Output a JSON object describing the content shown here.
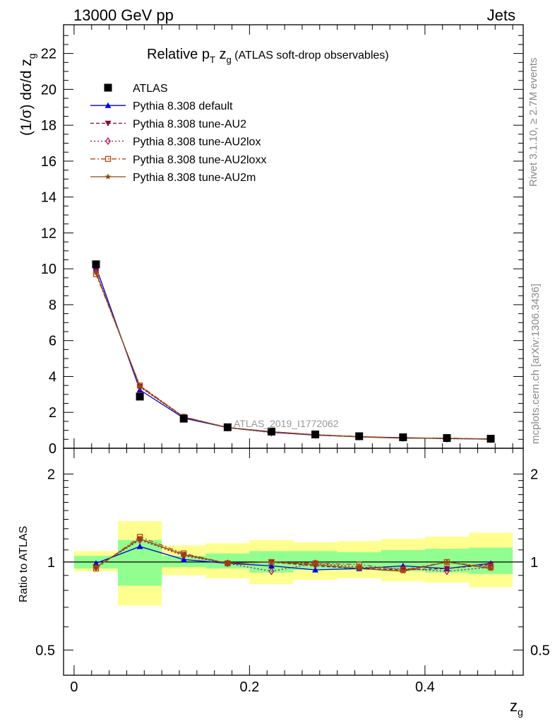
{
  "header": {
    "left": "13000 GeV pp",
    "right": "Jets"
  },
  "title": {
    "main": "Relative p",
    "sub_T": "T",
    "mid": " z",
    "sub_g": "g",
    "tail": " (ATLAS soft-drop observables)"
  },
  "side_texts": {
    "rivet": "Rivet 3.1.10, ≥ 2.7M events",
    "mcplots": "mcplots.cern.ch [arXiv:1306.3436]"
  },
  "watermark": "ATLAS_2019_I1772062",
  "axes": {
    "top_ylabel_main": "(1/σ) dσ/d z",
    "top_ylabel_sub": "g",
    "bottom_ylabel": "Ratio to ATLAS",
    "xlabel_main": "z",
    "xlabel_sub": "g"
  },
  "colors": {
    "atlas": "#000000",
    "default": "#0000dd",
    "au2": "#8b0a3a",
    "au2lox": "#a00a50",
    "au2loxx": "#c0440a",
    "au2m": "#8b4a12",
    "band_green": "#90ff90",
    "band_yellow": "#ffff90"
  },
  "legend": [
    {
      "key": "atlas",
      "label": "ATLAS",
      "marker": "square-filled",
      "line": "none"
    },
    {
      "key": "default",
      "label": "Pythia 8.308 default",
      "marker": "triangle-up",
      "line": "solid"
    },
    {
      "key": "au2",
      "label": "Pythia 8.308 tune-AU2",
      "marker": "triangle-down",
      "line": "dashed"
    },
    {
      "key": "au2lox",
      "label": "Pythia 8.308 tune-AU2lox",
      "marker": "diamond-open",
      "line": "dotted"
    },
    {
      "key": "au2loxx",
      "label": "Pythia 8.308 tune-AU2loxx",
      "marker": "square-open",
      "line": "dashdot"
    },
    {
      "key": "au2m",
      "label": "Pythia 8.308 tune-AU2m",
      "marker": "star",
      "line": "solid"
    }
  ],
  "chart_data": {
    "type": "line",
    "x": [
      0.025,
      0.075,
      0.125,
      0.175,
      0.225,
      0.275,
      0.325,
      0.375,
      0.425,
      0.475
    ],
    "x_edges": [
      0,
      0.05,
      0.1,
      0.15,
      0.2,
      0.25,
      0.3,
      0.35,
      0.4,
      0.45,
      0.5
    ],
    "xlim": [
      -0.012,
      0.512
    ],
    "top": {
      "ylim": [
        0,
        23.6
      ],
      "yticks": [
        0,
        2,
        4,
        6,
        8,
        10,
        12,
        14,
        16,
        18,
        20,
        22
      ],
      "series": [
        {
          "key": "atlas",
          "name": "ATLAS",
          "values": [
            10.25,
            2.88,
            1.65,
            1.17,
            0.93,
            0.77,
            0.67,
            0.61,
            0.57,
            0.53
          ]
        },
        {
          "key": "default",
          "name": "Pythia 8.308 default",
          "values": [
            10.1,
            3.25,
            1.68,
            1.15,
            0.89,
            0.73,
            0.64,
            0.59,
            0.54,
            0.52
          ]
        },
        {
          "key": "au2",
          "name": "Pythia 8.308 tune-AU2",
          "values": [
            9.8,
            3.45,
            1.74,
            1.16,
            0.92,
            0.75,
            0.64,
            0.57,
            0.55,
            0.52
          ]
        },
        {
          "key": "au2lox",
          "name": "Pythia 8.308 tune-AU2lox",
          "values": [
            9.85,
            3.4,
            1.72,
            1.15,
            0.87,
            0.76,
            0.64,
            0.58,
            0.53,
            0.51
          ]
        },
        {
          "key": "au2loxx",
          "name": "Pythia 8.308 tune-AU2loxx",
          "values": [
            9.7,
            3.5,
            1.75,
            1.16,
            0.92,
            0.76,
            0.66,
            0.57,
            0.57,
            0.51
          ]
        },
        {
          "key": "au2m",
          "name": "Pythia 8.308 tune-AU2m",
          "values": [
            9.8,
            3.45,
            1.74,
            1.15,
            0.92,
            0.75,
            0.63,
            0.56,
            0.56,
            0.5
          ]
        }
      ]
    },
    "ratio": {
      "ylim": [
        0.41,
        2.45
      ],
      "yscale": "log",
      "yticks": [
        0.5,
        1,
        2
      ],
      "band_green": [
        [
          0.95,
          1.05
        ],
        [
          0.83,
          1.19
        ],
        [
          0.96,
          1.05
        ],
        [
          0.95,
          1.07
        ],
        [
          0.92,
          1.09
        ],
        [
          0.94,
          1.09
        ],
        [
          0.94,
          1.08
        ],
        [
          0.93,
          1.1
        ],
        [
          0.92,
          1.11
        ],
        [
          0.91,
          1.12
        ]
      ],
      "band_yellow": [
        [
          0.93,
          1.09
        ],
        [
          0.71,
          1.38
        ],
        [
          0.9,
          1.14
        ],
        [
          0.88,
          1.16
        ],
        [
          0.84,
          1.19
        ],
        [
          0.87,
          1.17
        ],
        [
          0.88,
          1.18
        ],
        [
          0.86,
          1.2
        ],
        [
          0.85,
          1.22
        ],
        [
          0.82,
          1.26
        ]
      ],
      "series": [
        {
          "key": "default",
          "name": "Pythia 8.308 default",
          "values": [
            0.99,
            1.13,
            1.02,
            0.99,
            0.97,
            0.94,
            0.95,
            0.97,
            0.95,
            0.99
          ]
        },
        {
          "key": "au2",
          "name": "Pythia 8.308 tune-AU2",
          "values": [
            0.96,
            1.2,
            1.06,
            0.99,
            1.0,
            0.97,
            0.95,
            0.94,
            0.95,
            0.98
          ]
        },
        {
          "key": "au2lox",
          "name": "Pythia 8.308 tune-AU2lox",
          "values": [
            0.96,
            1.19,
            1.05,
            0.99,
            0.93,
            0.99,
            0.96,
            0.95,
            0.93,
            0.96
          ]
        },
        {
          "key": "au2loxx",
          "name": "Pythia 8.308 tune-AU2loxx",
          "values": [
            0.95,
            1.22,
            1.07,
            0.99,
            1.0,
            0.99,
            0.98,
            0.94,
            1.0,
            0.96
          ]
        },
        {
          "key": "au2m",
          "name": "Pythia 8.308 tune-AU2m",
          "values": [
            0.96,
            1.2,
            1.06,
            0.99,
            1.0,
            0.98,
            0.95,
            0.93,
            1.0,
            0.95
          ]
        }
      ]
    },
    "xticks": [
      0,
      0.2,
      0.4
    ],
    "xtick_labels": [
      "0",
      "0.2",
      "0.4"
    ]
  }
}
